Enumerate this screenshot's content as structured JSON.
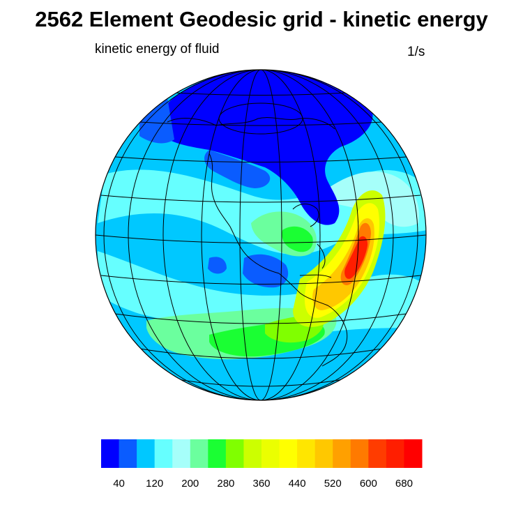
{
  "title": "2562 Element Geodesic grid - kinetic energy",
  "field_label": "kinetic energy of fluid",
  "units": "1/s",
  "colorbar": {
    "colors": [
      "#0000ff",
      "#0a5cff",
      "#00c8ff",
      "#66ffff",
      "#a6fffa",
      "#6bff9e",
      "#1aff33",
      "#80ff00",
      "#ccff00",
      "#ebff00",
      "#ffff00",
      "#ffe600",
      "#ffc800",
      "#ffa000",
      "#ff7a00",
      "#ff3c00",
      "#ff1e00",
      "#ff0000"
    ],
    "tick_labels": [
      "40",
      "120",
      "200",
      "280",
      "360",
      "440",
      "520",
      "600",
      "680"
    ]
  }
}
